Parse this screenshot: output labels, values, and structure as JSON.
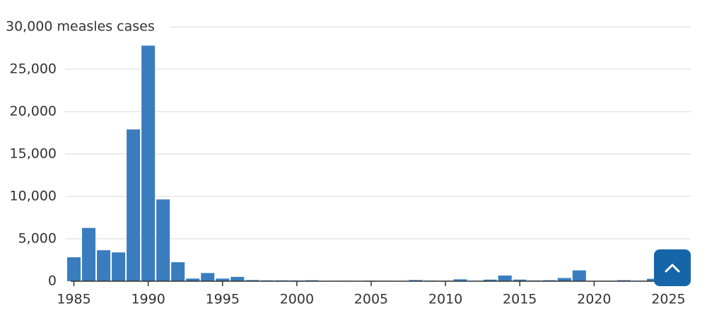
{
  "chart_data": {
    "type": "bar",
    "x": [
      1985,
      1986,
      1987,
      1988,
      1989,
      1990,
      1991,
      1992,
      1993,
      1994,
      1995,
      1996,
      1997,
      1998,
      1999,
      2000,
      2001,
      2002,
      2003,
      2004,
      2005,
      2006,
      2007,
      2008,
      2009,
      2010,
      2011,
      2012,
      2013,
      2014,
      2015,
      2016,
      2017,
      2018,
      2019,
      2020,
      2021,
      2022,
      2023,
      2024
    ],
    "values": [
      2822,
      6282,
      3655,
      3396,
      17900,
      27786,
      9643,
      2237,
      312,
      963,
      309,
      508,
      138,
      100,
      100,
      86,
      116,
      44,
      56,
      37,
      66,
      55,
      43,
      140,
      71,
      63,
      220,
      55,
      187,
      667,
      188,
      86,
      120,
      375,
      1274,
      13,
      49,
      121,
      59,
      285
    ],
    "color": "#3a7dbf",
    "xlim": [
      1984.5,
      2026.5
    ],
    "xticks": [
      1985,
      1990,
      1995,
      2000,
      2005,
      2010,
      2015,
      2020,
      2025
    ],
    "ylim": [
      0,
      30000
    ],
    "yticks": [
      0,
      {
        "value": 5000,
        "label": "5,000"
      },
      {
        "value": 10000,
        "label": "10,000"
      },
      {
        "value": 15000,
        "label": "15,000"
      },
      {
        "value": 20000,
        "label": "20,000"
      },
      {
        "value": 25000,
        "label": "25,000"
      },
      {
        "value": 30000,
        "label": "30,000 measles cases"
      }
    ],
    "grid": true
  }
}
